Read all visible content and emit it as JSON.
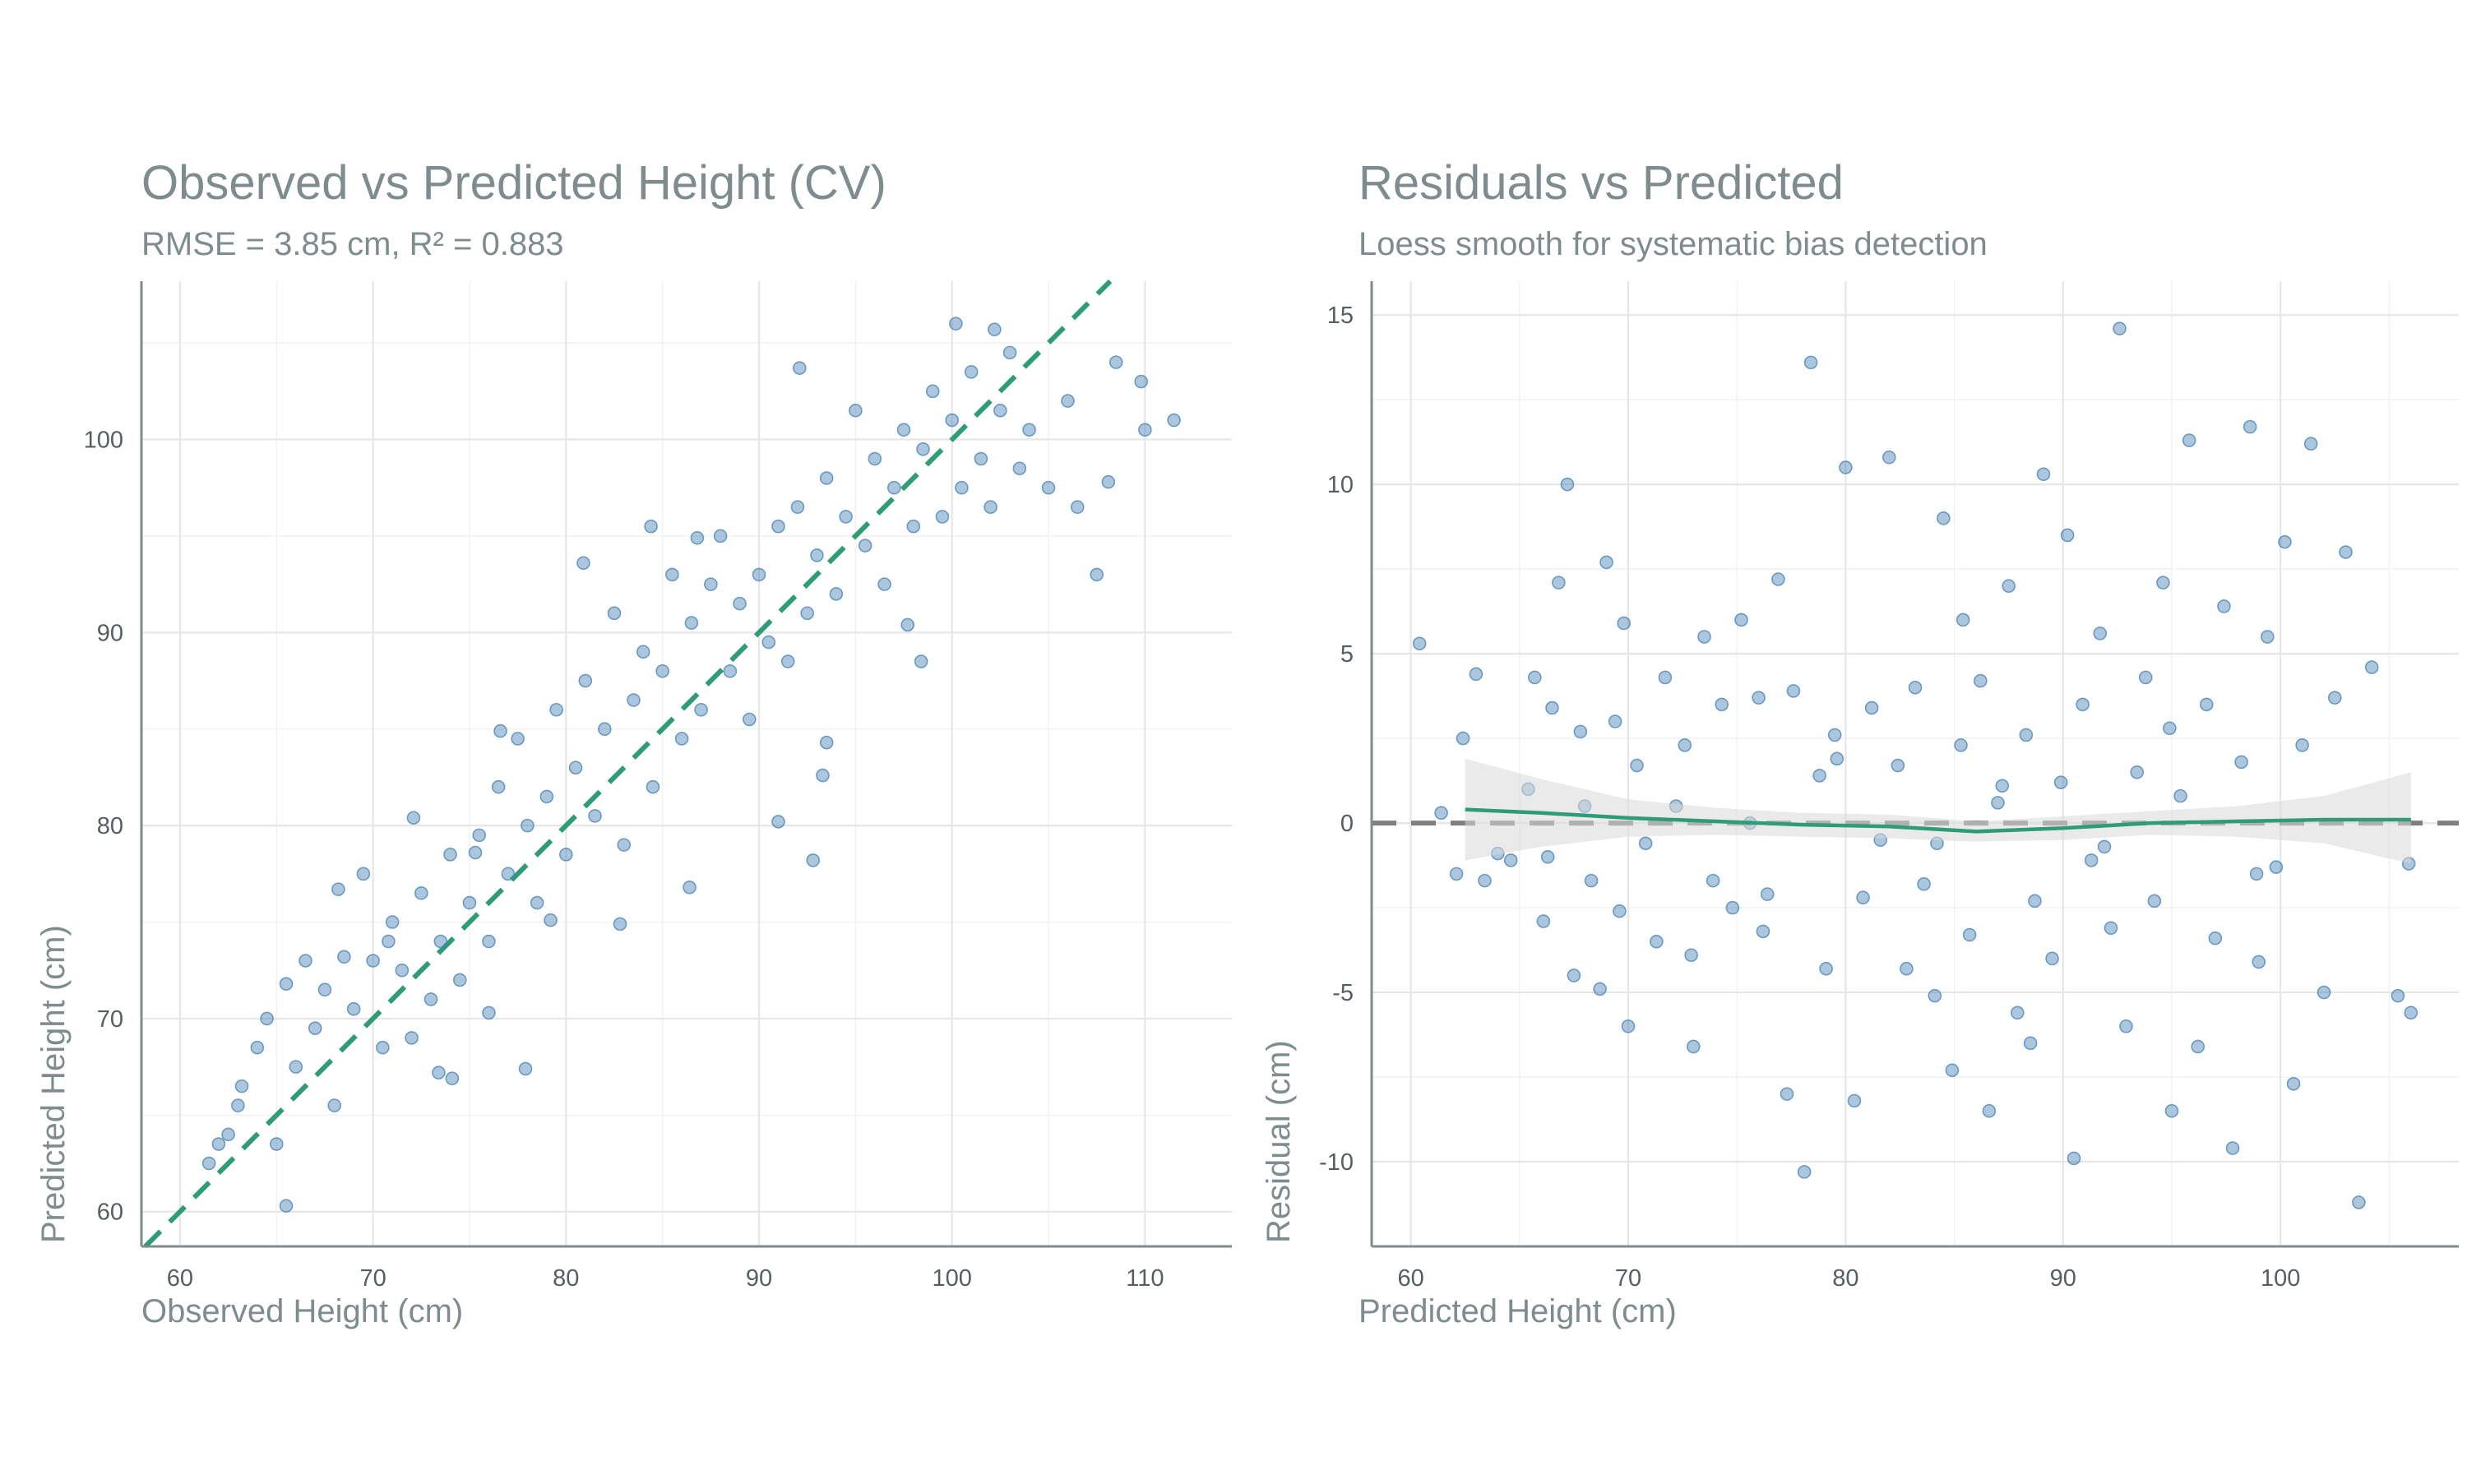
{
  "colors": {
    "points": "#4682b4",
    "fit": "#2e9c74",
    "zero_line": "#7f7f7f",
    "band": "#d9d9d9",
    "text": "#7f8c8d"
  },
  "chart_data": [
    {
      "type": "scatter",
      "title": "Observed vs Predicted Height (CV)",
      "subtitle": "RMSE = 3.85 cm, R² = 0.883",
      "xlabel": "Observed Height (cm)",
      "ylabel": "Predicted Height (cm)",
      "xlim": [
        58,
        114.5
      ],
      "ylim": [
        58.2,
        108.2
      ],
      "xticks": [
        60,
        70,
        80,
        90,
        100,
        110
      ],
      "yticks": [
        60,
        70,
        80,
        90,
        100
      ],
      "grid": true,
      "reference_line": {
        "type": "identity",
        "style": "dashed"
      },
      "series": [
        {
          "points": [
            [
              61.5,
              62.5
            ],
            [
              62,
              63.5
            ],
            [
              62.5,
              64
            ],
            [
              63,
              65.5
            ],
            [
              63.2,
              66.5
            ],
            [
              64,
              68.5
            ],
            [
              64.5,
              70
            ],
            [
              65,
              63.5
            ],
            [
              65.5,
              60.3
            ],
            [
              66,
              67.5
            ],
            [
              66.5,
              73
            ],
            [
              67,
              69.5
            ],
            [
              67.5,
              71.5
            ],
            [
              68,
              65.5
            ],
            [
              68.5,
              73.2
            ],
            [
              69,
              70.5
            ],
            [
              69.5,
              77.5
            ],
            [
              70,
              73
            ],
            [
              70.5,
              68.5
            ],
            [
              71,
              75
            ],
            [
              71.5,
              72.5
            ],
            [
              72,
              69
            ],
            [
              72.5,
              76.5
            ],
            [
              73,
              71
            ],
            [
              73.5,
              74
            ],
            [
              74,
              78.5
            ],
            [
              74.5,
              72
            ],
            [
              75,
              76
            ],
            [
              75.5,
              79.5
            ],
            [
              76,
              74
            ],
            [
              76.5,
              82
            ],
            [
              77,
              77.5
            ],
            [
              77.5,
              84.5
            ],
            [
              78,
              80
            ],
            [
              78.5,
              76
            ],
            [
              79,
              81.5
            ],
            [
              79.5,
              86
            ],
            [
              80,
              78.5
            ],
            [
              80.5,
              83
            ],
            [
              81,
              87.5
            ],
            [
              81.5,
              80.5
            ],
            [
              82,
              85
            ],
            [
              82.5,
              91
            ],
            [
              83,
              79
            ],
            [
              83.5,
              86.5
            ],
            [
              84,
              89
            ],
            [
              84.5,
              82
            ],
            [
              85,
              88
            ],
            [
              85.5,
              93
            ],
            [
              86,
              84.5
            ],
            [
              86.5,
              90.5
            ],
            [
              87,
              86
            ],
            [
              87.5,
              92.5
            ],
            [
              88,
              95
            ],
            [
              88.5,
              88
            ],
            [
              89,
              91.5
            ],
            [
              89.5,
              85.5
            ],
            [
              90,
              93
            ],
            [
              90.5,
              89.5
            ],
            [
              91,
              95.5
            ],
            [
              91.5,
              88.5
            ],
            [
              92,
              96.5
            ],
            [
              92.5,
              91
            ],
            [
              93,
              94
            ],
            [
              93.5,
              98
            ],
            [
              94,
              92
            ],
            [
              94.5,
              96
            ],
            [
              95,
              101.5
            ],
            [
              95.5,
              94.5
            ],
            [
              96,
              99
            ],
            [
              96.5,
              92.5
            ],
            [
              97,
              97.5
            ],
            [
              97.5,
              100.5
            ],
            [
              98,
              95.5
            ],
            [
              98.5,
              99.5
            ],
            [
              99,
              102.5
            ],
            [
              99.5,
              96
            ],
            [
              100,
              101
            ],
            [
              100.5,
              97.5
            ],
            [
              101,
              103.5
            ],
            [
              101.5,
              99
            ],
            [
              102,
              96.5
            ],
            [
              102.5,
              101.5
            ],
            [
              103,
              104.5
            ],
            [
              103.5,
              98.5
            ],
            [
              104,
              100.5
            ],
            [
              105,
              97.5
            ],
            [
              106,
              102
            ],
            [
              107.5,
              93
            ],
            [
              108.5,
              104
            ],
            [
              110,
              100.5
            ],
            [
              111.5,
              101
            ],
            [
              65.5,
              71.8
            ],
            [
              68.2,
              76.7
            ],
            [
              72.1,
              80.4
            ],
            [
              79.2,
              75.1
            ],
            [
              82.8,
              74.9
            ],
            [
              86.4,
              76.8
            ],
            [
              91,
              80.2
            ],
            [
              92.8,
              78.2
            ],
            [
              93.3,
              82.6
            ],
            [
              93.5,
              84.3
            ],
            [
              98.4,
              88.5
            ],
            [
              97.7,
              90.4
            ],
            [
              92.1,
              103.7
            ],
            [
              100.2,
              106
            ],
            [
              102.2,
              105.7
            ],
            [
              108.1,
              97.8
            ],
            [
              106.5,
              96.5
            ],
            [
              109.8,
              103
            ],
            [
              84.4,
              95.5
            ],
            [
              86.8,
              94.9
            ],
            [
              80.9,
              93.6
            ],
            [
              76.6,
              84.9
            ],
            [
              75.3,
              78.6
            ],
            [
              70.8,
              74
            ],
            [
              73.4,
              67.2
            ],
            [
              74.1,
              66.9
            ],
            [
              76,
              70.3
            ],
            [
              77.9,
              67.4
            ]
          ]
        }
      ]
    },
    {
      "type": "scatter",
      "title": "Residuals vs Predicted",
      "subtitle": "Loess smooth for systematic bias detection",
      "xlabel": "Predicted Height (cm)",
      "ylabel": "Residual (cm)",
      "xlim": [
        58.2,
        108.2
      ],
      "ylim": [
        -12.5,
        16
      ],
      "xticks": [
        60,
        70,
        80,
        90,
        100
      ],
      "yticks": [
        -10,
        -5,
        0,
        5,
        10,
        15
      ],
      "grid": true,
      "reference_line": {
        "type": "horizontal",
        "y": 0,
        "style": "dashed"
      },
      "loess": {
        "x": [
          62.5,
          66,
          70,
          74,
          78,
          82,
          86,
          90,
          94,
          98,
          102,
          106
        ],
        "y": [
          0.4,
          0.3,
          0.15,
          0.05,
          -0.05,
          -0.1,
          -0.25,
          -0.15,
          0,
          0.05,
          0.1,
          0.1
        ],
        "lower": [
          -1.1,
          -0.7,
          -0.4,
          -0.35,
          -0.4,
          -0.45,
          -0.55,
          -0.5,
          -0.35,
          -0.4,
          -0.6,
          -1.2
        ],
        "upper": [
          1.9,
          1.3,
          0.7,
          0.45,
          0.3,
          0.25,
          0.05,
          0.2,
          0.35,
          0.5,
          0.8,
          1.5
        ]
      },
      "series": [
        {
          "points": [
            [
              60.4,
              5.3
            ],
            [
              61.4,
              0.3
            ],
            [
              62.1,
              -1.5
            ],
            [
              62.4,
              2.5
            ],
            [
              63,
              4.4
            ],
            [
              63.4,
              -1.7
            ],
            [
              64,
              -0.9
            ],
            [
              64.6,
              -1.1
            ],
            [
              65.4,
              1
            ],
            [
              65.7,
              4.3
            ],
            [
              66.1,
              -2.9
            ],
            [
              66.5,
              3.4
            ],
            [
              66.8,
              7.1
            ],
            [
              67.2,
              10
            ],
            [
              67.5,
              -4.5
            ],
            [
              67.8,
              2.7
            ],
            [
              68,
              0.5
            ],
            [
              68.3,
              -1.7
            ],
            [
              68.7,
              -4.9
            ],
            [
              69,
              7.7
            ],
            [
              69.4,
              3
            ],
            [
              69.8,
              5.9
            ],
            [
              70,
              -6
            ],
            [
              70.4,
              1.7
            ],
            [
              70.8,
              -0.6
            ],
            [
              71.3,
              -3.5
            ],
            [
              71.7,
              4.3
            ],
            [
              72.2,
              0.5
            ],
            [
              72.6,
              2.3
            ],
            [
              73,
              -6.6
            ],
            [
              73.5,
              5.5
            ],
            [
              73.9,
              -1.7
            ],
            [
              74.3,
              3.5
            ],
            [
              74.8,
              -2.5
            ],
            [
              75.2,
              6
            ],
            [
              75.6,
              0
            ],
            [
              76,
              3.7
            ],
            [
              76.4,
              -2.1
            ],
            [
              76.9,
              7.2
            ],
            [
              77.3,
              -8
            ],
            [
              77.6,
              3.9
            ],
            [
              78.1,
              -10.3
            ],
            [
              78.4,
              13.6
            ],
            [
              78.8,
              1.4
            ],
            [
              79.1,
              -4.3
            ],
            [
              79.5,
              2.6
            ],
            [
              80,
              10.5
            ],
            [
              80.4,
              -8.2
            ],
            [
              80.8,
              -2.2
            ],
            [
              81.2,
              3.4
            ],
            [
              81.6,
              -0.5
            ],
            [
              82,
              10.8
            ],
            [
              82.4,
              1.7
            ],
            [
              82.8,
              -4.3
            ],
            [
              83.2,
              4
            ],
            [
              83.6,
              -1.8
            ],
            [
              84.1,
              -5.1
            ],
            [
              84.5,
              9
            ],
            [
              84.9,
              -7.3
            ],
            [
              85.3,
              2.3
            ],
            [
              85.7,
              -3.3
            ],
            [
              86.2,
              4.2
            ],
            [
              86.6,
              -8.5
            ],
            [
              87,
              0.6
            ],
            [
              87.5,
              7
            ],
            [
              87.9,
              -5.6
            ],
            [
              88.3,
              2.6
            ],
            [
              88.7,
              -2.3
            ],
            [
              89.1,
              10.3
            ],
            [
              89.5,
              -4
            ],
            [
              89.9,
              1.2
            ],
            [
              90.2,
              8.5
            ],
            [
              90.5,
              -9.9
            ],
            [
              90.9,
              3.5
            ],
            [
              91.3,
              -1.1
            ],
            [
              91.7,
              5.6
            ],
            [
              92.2,
              -3.1
            ],
            [
              92.6,
              14.6
            ],
            [
              92.9,
              -6
            ],
            [
              93.4,
              1.5
            ],
            [
              93.8,
              4.3
            ],
            [
              94.2,
              -2.3
            ],
            [
              94.6,
              7.1
            ],
            [
              95,
              -8.5
            ],
            [
              95.4,
              0.8
            ],
            [
              95.8,
              11.3
            ],
            [
              96.2,
              -6.6
            ],
            [
              96.6,
              3.5
            ],
            [
              97,
              -3.4
            ],
            [
              97.4,
              6.4
            ],
            [
              97.8,
              -9.6
            ],
            [
              98.2,
              1.8
            ],
            [
              98.6,
              11.7
            ],
            [
              99,
              -4.1
            ],
            [
              99.4,
              5.5
            ],
            [
              99.8,
              -1.3
            ],
            [
              100.2,
              8.3
            ],
            [
              100.6,
              -7.7
            ],
            [
              101,
              2.3
            ],
            [
              101.4,
              11.2
            ],
            [
              102,
              -5
            ],
            [
              102.5,
              3.7
            ],
            [
              103,
              8
            ],
            [
              103.6,
              -11.2
            ],
            [
              104.2,
              4.6
            ],
            [
              105.4,
              -5.1
            ],
            [
              105.9,
              -1.2
            ],
            [
              106,
              -5.6
            ],
            [
              88.5,
              -6.5
            ],
            [
              85.4,
              6
            ],
            [
              79.6,
              1.9
            ],
            [
              76.2,
              -3.2
            ],
            [
              72.9,
              -3.9
            ],
            [
              69.6,
              -2.6
            ],
            [
              66.3,
              -1
            ],
            [
              84.2,
              -0.6
            ],
            [
              94.9,
              2.8
            ],
            [
              98.9,
              -1.5
            ],
            [
              91.9,
              -0.7
            ],
            [
              87.2,
              1.1
            ]
          ]
        }
      ]
    }
  ]
}
